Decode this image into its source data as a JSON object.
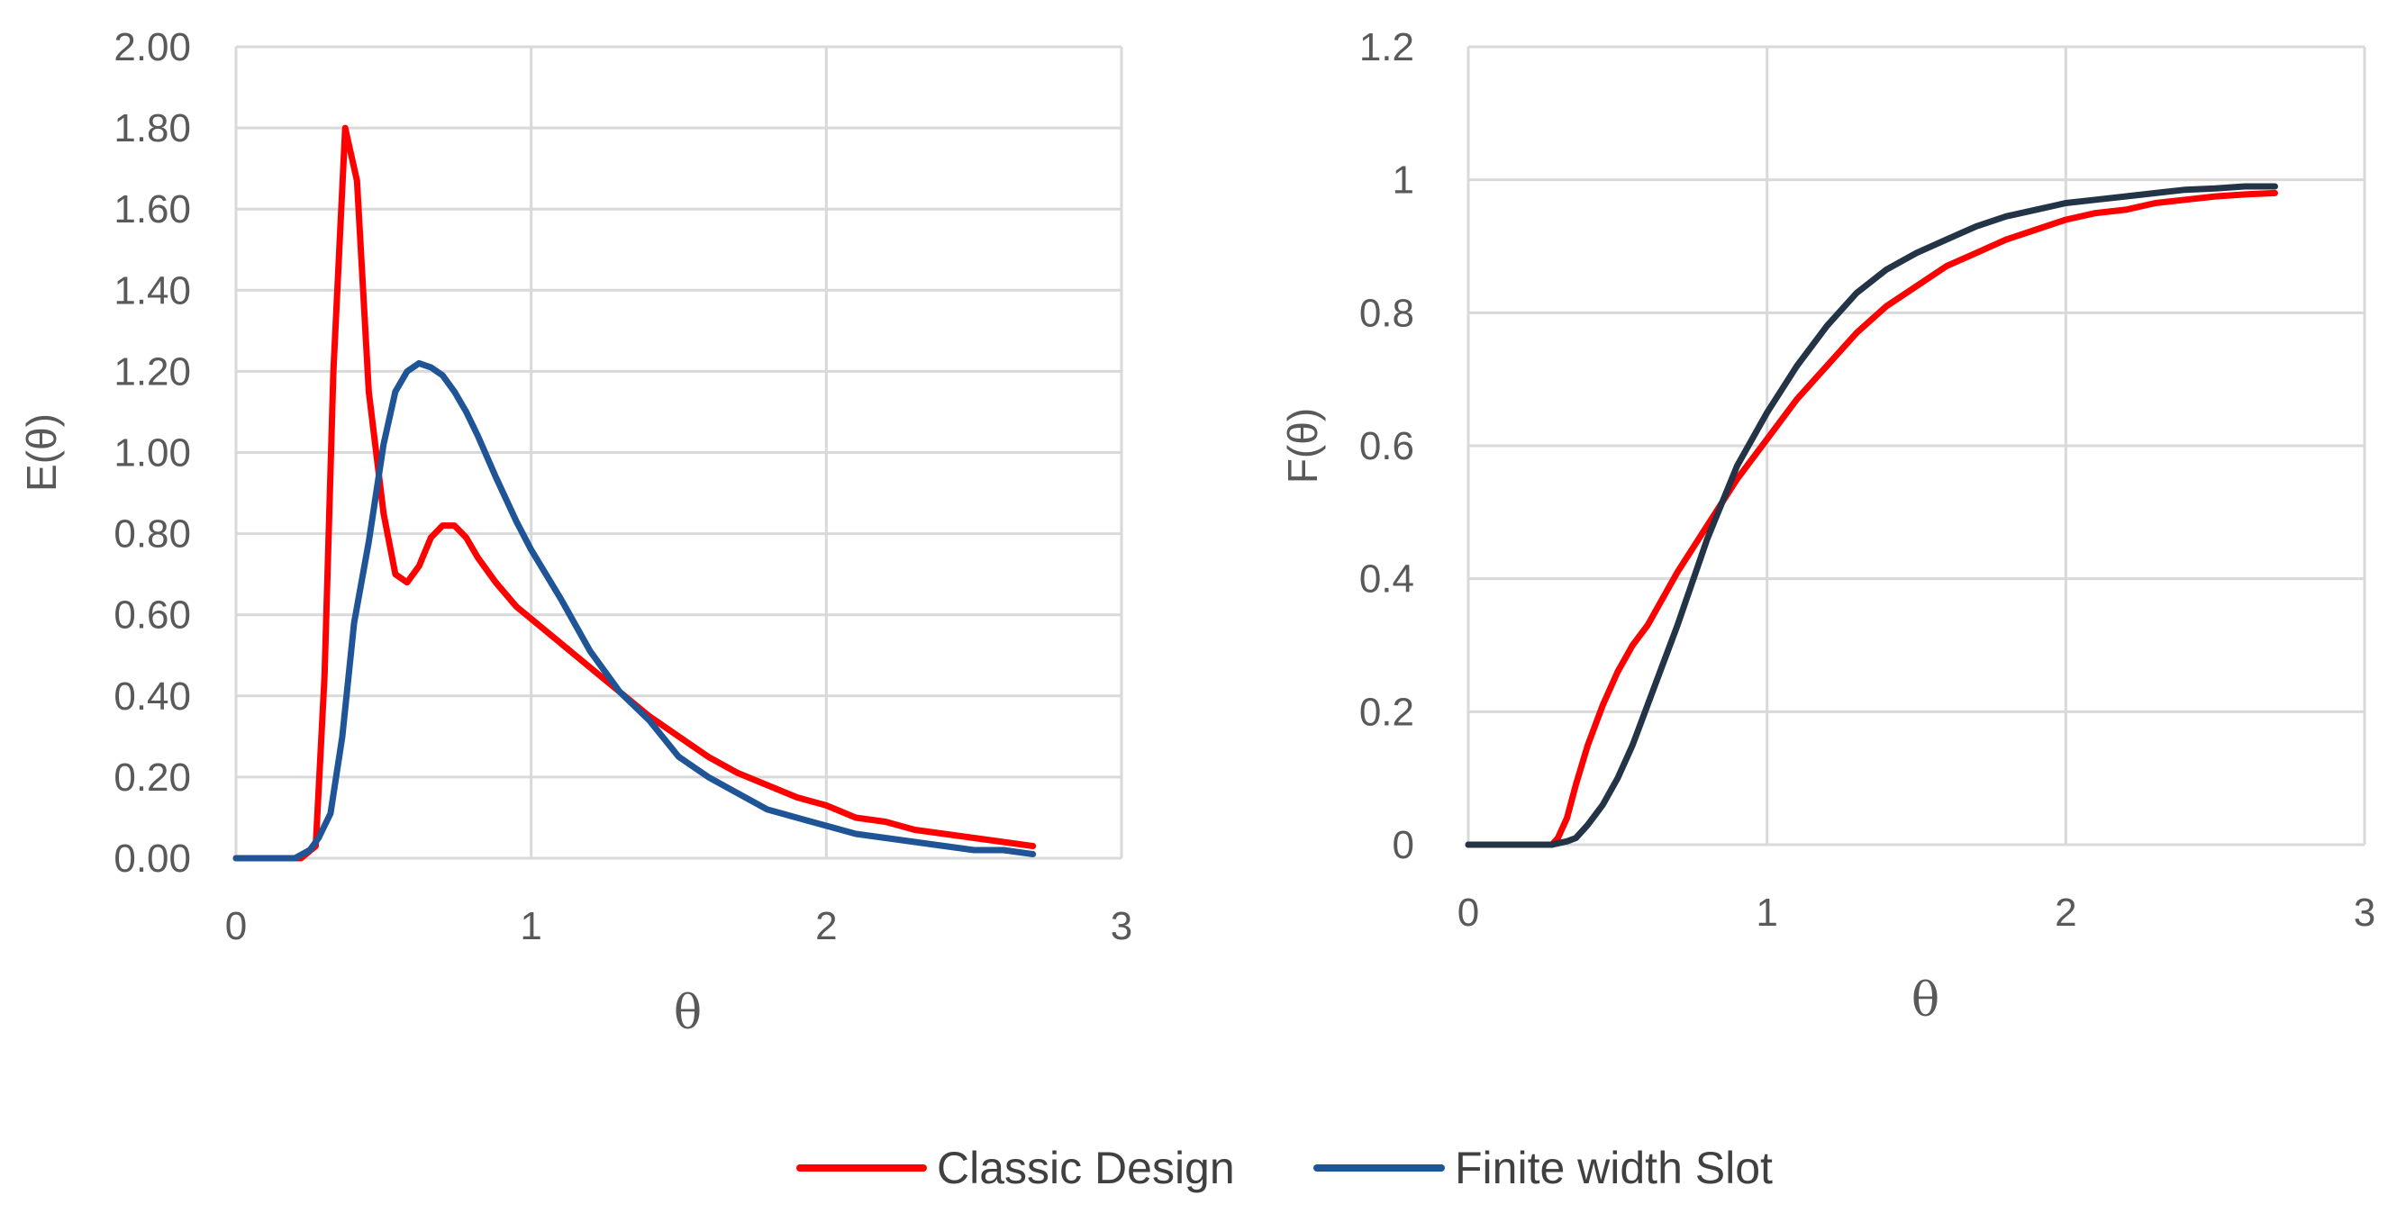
{
  "chart_data": [
    {
      "type": "line",
      "title": "",
      "xlabel": "θ",
      "ylabel": "E(θ)",
      "xlim": [
        0,
        3
      ],
      "ylim": [
        0,
        2
      ],
      "xticks": [
        0,
        1,
        2,
        3
      ],
      "xtick_labels": [
        "0",
        "1",
        "2",
        "3"
      ],
      "yticks": [
        0,
        0.2,
        0.4,
        0.6,
        0.8,
        1.0,
        1.2,
        1.4,
        1.6,
        1.8,
        2.0
      ],
      "ytick_labels": [
        "0.00",
        "0.20",
        "0.40",
        "0.60",
        "0.80",
        "1.00",
        "1.20",
        "1.40",
        "1.60",
        "1.80",
        "2.00"
      ],
      "grid": true,
      "series": [
        {
          "name": "Classic Design",
          "color": "#ff0000",
          "x": [
            0,
            0.22,
            0.27,
            0.3,
            0.33,
            0.37,
            0.41,
            0.45,
            0.5,
            0.54,
            0.58,
            0.62,
            0.66,
            0.7,
            0.74,
            0.78,
            0.82,
            0.88,
            0.95,
            1.0,
            1.1,
            1.2,
            1.3,
            1.4,
            1.5,
            1.6,
            1.7,
            1.8,
            1.9,
            2.0,
            2.1,
            2.2,
            2.3,
            2.4,
            2.5,
            2.6,
            2.7
          ],
          "y": [
            0,
            0,
            0.03,
            0.45,
            1.2,
            1.8,
            1.67,
            1.15,
            0.85,
            0.7,
            0.68,
            0.72,
            0.79,
            0.82,
            0.82,
            0.79,
            0.74,
            0.68,
            0.62,
            0.59,
            0.53,
            0.47,
            0.41,
            0.35,
            0.3,
            0.25,
            0.21,
            0.18,
            0.15,
            0.13,
            0.1,
            0.09,
            0.07,
            0.06,
            0.05,
            0.04,
            0.03
          ]
        },
        {
          "name": "Finite width Slot",
          "color": "#1f5597",
          "x": [
            0,
            0.2,
            0.25,
            0.28,
            0.32,
            0.36,
            0.4,
            0.45,
            0.5,
            0.54,
            0.58,
            0.62,
            0.66,
            0.7,
            0.74,
            0.78,
            0.82,
            0.88,
            0.95,
            1.0,
            1.1,
            1.2,
            1.3,
            1.4,
            1.5,
            1.6,
            1.7,
            1.8,
            1.9,
            2.0,
            2.1,
            2.2,
            2.3,
            2.4,
            2.5,
            2.6,
            2.7
          ],
          "y": [
            0,
            0,
            0.02,
            0.05,
            0.11,
            0.3,
            0.58,
            0.78,
            1.02,
            1.15,
            1.2,
            1.22,
            1.21,
            1.19,
            1.15,
            1.1,
            1.04,
            0.94,
            0.83,
            0.76,
            0.64,
            0.51,
            0.41,
            0.34,
            0.25,
            0.2,
            0.16,
            0.12,
            0.1,
            0.08,
            0.06,
            0.05,
            0.04,
            0.03,
            0.02,
            0.02,
            0.01
          ]
        }
      ]
    },
    {
      "type": "line",
      "title": "",
      "xlabel": "θ",
      "ylabel": "F(θ)",
      "xlim": [
        0,
        3
      ],
      "ylim": [
        0,
        1.2
      ],
      "xticks": [
        0,
        1,
        2,
        3
      ],
      "xtick_labels": [
        "0",
        "1",
        "2",
        "3"
      ],
      "yticks": [
        0,
        0.2,
        0.4,
        0.6,
        0.8,
        1.0,
        1.2
      ],
      "ytick_labels": [
        "0",
        "0.2",
        "0.4",
        "0.6",
        "0.8",
        "1",
        "1.2"
      ],
      "grid": true,
      "series": [
        {
          "name": "Classic Design",
          "color": "#ff0000",
          "x": [
            0,
            0.28,
            0.3,
            0.33,
            0.36,
            0.4,
            0.45,
            0.5,
            0.55,
            0.6,
            0.65,
            0.7,
            0.8,
            0.9,
            1.0,
            1.1,
            1.2,
            1.3,
            1.4,
            1.5,
            1.6,
            1.7,
            1.8,
            1.9,
            2.0,
            2.1,
            2.2,
            2.3,
            2.4,
            2.5,
            2.6,
            2.7
          ],
          "y": [
            0,
            0,
            0.01,
            0.04,
            0.09,
            0.15,
            0.21,
            0.26,
            0.3,
            0.33,
            0.37,
            0.41,
            0.48,
            0.55,
            0.61,
            0.67,
            0.72,
            0.77,
            0.81,
            0.84,
            0.87,
            0.89,
            0.91,
            0.925,
            0.94,
            0.95,
            0.955,
            0.965,
            0.97,
            0.975,
            0.978,
            0.98
          ]
        },
        {
          "name": "Finite width Slot",
          "color": "#243447",
          "x": [
            0,
            0.28,
            0.33,
            0.36,
            0.4,
            0.45,
            0.5,
            0.55,
            0.6,
            0.65,
            0.7,
            0.8,
            0.9,
            1.0,
            1.1,
            1.2,
            1.3,
            1.4,
            1.5,
            1.6,
            1.7,
            1.8,
            1.9,
            2.0,
            2.1,
            2.2,
            2.3,
            2.4,
            2.5,
            2.6,
            2.7
          ],
          "y": [
            0,
            0,
            0.005,
            0.01,
            0.03,
            0.06,
            0.1,
            0.15,
            0.21,
            0.27,
            0.33,
            0.46,
            0.57,
            0.65,
            0.72,
            0.78,
            0.83,
            0.865,
            0.89,
            0.91,
            0.93,
            0.945,
            0.955,
            0.965,
            0.97,
            0.975,
            0.98,
            0.985,
            0.987,
            0.99,
            0.99
          ]
        }
      ]
    }
  ],
  "legend": {
    "items": [
      {
        "label": "Classic Design",
        "color": "#ff0000"
      },
      {
        "label": "Finite width Slot",
        "color": "#1f5597"
      }
    ]
  }
}
